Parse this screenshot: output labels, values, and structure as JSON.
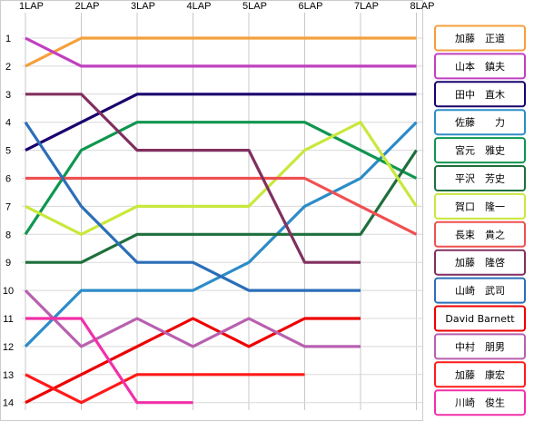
{
  "chart_data": {
    "type": "line",
    "title": "",
    "xlabel": "",
    "ylabel": "",
    "x": [
      "1LAP",
      "2LAP",
      "3LAP",
      "4LAP",
      "5LAP",
      "6LAP",
      "7LAP",
      "8LAP"
    ],
    "y_ticks": [
      "1",
      "2",
      "3",
      "4",
      "5",
      "6",
      "7",
      "8",
      "9",
      "10",
      "11",
      "12",
      "13",
      "14"
    ],
    "ylim": [
      14,
      1
    ],
    "grid": true,
    "legend_position": "right",
    "series": [
      {
        "name": "加藤　正道",
        "color": "#f4a03c",
        "values": [
          2,
          1,
          1,
          1,
          1,
          1,
          1,
          1
        ]
      },
      {
        "name": "山本　鎮夫",
        "color": "#c040c0",
        "values": [
          1,
          2,
          2,
          2,
          2,
          2,
          2,
          2
        ]
      },
      {
        "name": "田中　直木",
        "color": "#1a006e",
        "values": [
          5,
          4,
          3,
          3,
          3,
          3,
          3,
          3
        ]
      },
      {
        "name": "佐藤　　力",
        "color": "#2c8cc8",
        "values": [
          12,
          10,
          10,
          10,
          9,
          7,
          6,
          4
        ]
      },
      {
        "name": "宮元　雅史",
        "color": "#0f9650",
        "values": [
          8,
          5,
          4,
          4,
          4,
          4,
          5,
          6
        ]
      },
      {
        "name": "平沢　芳史",
        "color": "#1e6f3c",
        "values": [
          9,
          9,
          8,
          8,
          8,
          8,
          8,
          5
        ]
      },
      {
        "name": "賀口　隆一",
        "color": "#c8e83c",
        "values": [
          7,
          8,
          7,
          7,
          7,
          5,
          4,
          7
        ]
      },
      {
        "name": "長束　貴之",
        "color": "#f05050",
        "values": [
          6,
          6,
          6,
          6,
          6,
          6,
          7,
          8
        ]
      },
      {
        "name": "加藤　隆啓",
        "color": "#80305e",
        "values": [
          3,
          3,
          5,
          5,
          5,
          9,
          9,
          null
        ]
      },
      {
        "name": "山崎　武司",
        "color": "#2c6eb8",
        "values": [
          4,
          7,
          9,
          9,
          10,
          10,
          10,
          null
        ]
      },
      {
        "name": "David Barnett",
        "color": "#ee0000",
        "values": [
          14,
          13,
          12,
          11,
          12,
          11,
          11,
          null
        ]
      },
      {
        "name": "中村　朋男",
        "color": "#b860b0",
        "values": [
          10,
          12,
          11,
          12,
          11,
          12,
          12,
          null
        ]
      },
      {
        "name": "加藤　康宏",
        "color": "#ff1a1a",
        "values": [
          13,
          14,
          13,
          13,
          13,
          13,
          null,
          null
        ]
      },
      {
        "name": "川崎　俊生",
        "color": "#f030a8",
        "values": [
          11,
          11,
          14,
          14,
          null,
          null,
          null,
          null
        ]
      }
    ]
  }
}
